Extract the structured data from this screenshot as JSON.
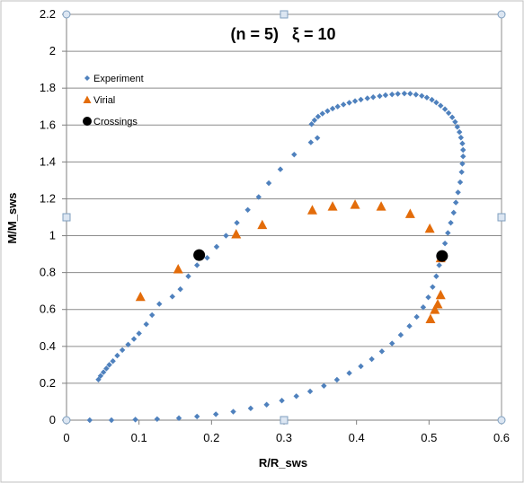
{
  "chart_data": {
    "type": "scatter",
    "title": "(n = 5)   ξ = 10",
    "xlabel": "R/R_sws",
    "ylabel": "M/M_sws",
    "xlim": [
      0,
      0.6
    ],
    "ylim": [
      0,
      2.2
    ],
    "xticks": [
      0,
      0.1,
      0.2,
      0.3,
      0.4,
      0.5,
      0.6
    ],
    "xtick_labels": [
      "0",
      "0.1",
      "0.2",
      "0.3",
      "0.4",
      "0.5",
      "0.6"
    ],
    "yticks": [
      0,
      0.2,
      0.4,
      0.6,
      0.8,
      1,
      1.2,
      1.4,
      1.6,
      1.8,
      2,
      2.2
    ],
    "ytick_labels": [
      "0",
      "0.2",
      "0.4",
      "0.6",
      "0.8",
      "1",
      "1.2",
      "1.4",
      "1.6",
      "1.8",
      "2",
      "2.2"
    ],
    "grid": "horizontal",
    "legend_position": "top-left",
    "series": [
      {
        "name": "Experiment",
        "marker": "diamond",
        "color": "#4f81bd",
        "points": [
          [
            0.032,
            0.0
          ],
          [
            0.062,
            0.0
          ],
          [
            0.095,
            0.003
          ],
          [
            0.125,
            0.006
          ],
          [
            0.155,
            0.011
          ],
          [
            0.18,
            0.02
          ],
          [
            0.206,
            0.032
          ],
          [
            0.23,
            0.046
          ],
          [
            0.254,
            0.064
          ],
          [
            0.276,
            0.084
          ],
          [
            0.297,
            0.106
          ],
          [
            0.317,
            0.13
          ],
          [
            0.336,
            0.156
          ],
          [
            0.355,
            0.186
          ],
          [
            0.373,
            0.219
          ],
          [
            0.39,
            0.255
          ],
          [
            0.406,
            0.292
          ],
          [
            0.421,
            0.331
          ],
          [
            0.435,
            0.373
          ],
          [
            0.449,
            0.416
          ],
          [
            0.461,
            0.462
          ],
          [
            0.473,
            0.51
          ],
          [
            0.483,
            0.56
          ],
          [
            0.492,
            0.612
          ],
          [
            0.499,
            0.666
          ],
          [
            0.505,
            0.722
          ],
          [
            0.51,
            0.78
          ],
          [
            0.514,
            0.84
          ],
          [
            0.518,
            0.9
          ],
          [
            0.522,
            0.958
          ],
          [
            0.526,
            1.015
          ],
          [
            0.53,
            1.07
          ],
          [
            0.534,
            1.125
          ],
          [
            0.537,
            1.18
          ],
          [
            0.54,
            1.235
          ],
          [
            0.543,
            1.29
          ],
          [
            0.545,
            1.345
          ],
          [
            0.546,
            1.39
          ],
          [
            0.547,
            1.43
          ],
          [
            0.547,
            1.465
          ],
          [
            0.546,
            1.5
          ],
          [
            0.544,
            1.532
          ],
          [
            0.542,
            1.562
          ],
          [
            0.539,
            1.59
          ],
          [
            0.536,
            1.617
          ],
          [
            0.532,
            1.642
          ],
          [
            0.527,
            1.665
          ],
          [
            0.522,
            1.686
          ],
          [
            0.516,
            1.705
          ],
          [
            0.51,
            1.722
          ],
          [
            0.504,
            1.737
          ],
          [
            0.497,
            1.749
          ],
          [
            0.49,
            1.758
          ],
          [
            0.482,
            1.765
          ],
          [
            0.474,
            1.77
          ],
          [
            0.466,
            1.771
          ],
          [
            0.457,
            1.769
          ],
          [
            0.449,
            1.766
          ],
          [
            0.44,
            1.762
          ],
          [
            0.432,
            1.757
          ],
          [
            0.423,
            1.751
          ],
          [
            0.415,
            1.745
          ],
          [
            0.406,
            1.738
          ],
          [
            0.398,
            1.73
          ],
          [
            0.39,
            1.721
          ],
          [
            0.382,
            1.711
          ],
          [
            0.374,
            1.7
          ],
          [
            0.367,
            1.689
          ],
          [
            0.36,
            1.676
          ],
          [
            0.353,
            1.662
          ],
          [
            0.347,
            1.646
          ],
          [
            0.342,
            1.626
          ],
          [
            0.338,
            1.605
          ],
          [
            0.346,
            1.53
          ],
          [
            0.337,
            1.506
          ],
          [
            0.314,
            1.44
          ],
          [
            0.295,
            1.36
          ],
          [
            0.279,
            1.285
          ],
          [
            0.265,
            1.21
          ],
          [
            0.25,
            1.14
          ],
          [
            0.235,
            1.07
          ],
          [
            0.22,
            1.0
          ],
          [
            0.207,
            0.94
          ],
          [
            0.194,
            0.88
          ],
          [
            0.18,
            0.84
          ],
          [
            0.168,
            0.78
          ],
          [
            0.157,
            0.71
          ],
          [
            0.146,
            0.67
          ],
          [
            0.128,
            0.63
          ],
          [
            0.118,
            0.57
          ],
          [
            0.11,
            0.52
          ],
          [
            0.1,
            0.47
          ],
          [
            0.093,
            0.44
          ],
          [
            0.085,
            0.41
          ],
          [
            0.077,
            0.38
          ],
          [
            0.07,
            0.35
          ],
          [
            0.064,
            0.32
          ],
          [
            0.059,
            0.3
          ],
          [
            0.055,
            0.28
          ],
          [
            0.051,
            0.26
          ],
          [
            0.047,
            0.24
          ],
          [
            0.044,
            0.22
          ]
        ]
      },
      {
        "name": "Virial",
        "marker": "triangle",
        "color": "#e36c0a",
        "points": [
          [
            0.102,
            0.67
          ],
          [
            0.154,
            0.82
          ],
          [
            0.234,
            1.01
          ],
          [
            0.27,
            1.06
          ],
          [
            0.339,
            1.14
          ],
          [
            0.367,
            1.16
          ],
          [
            0.398,
            1.17
          ],
          [
            0.434,
            1.16
          ],
          [
            0.474,
            1.12
          ],
          [
            0.501,
            1.04
          ],
          [
            0.516,
            0.88
          ],
          [
            0.516,
            0.68
          ],
          [
            0.512,
            0.63
          ],
          [
            0.508,
            0.6
          ],
          [
            0.502,
            0.55
          ]
        ]
      },
      {
        "name": "Crossings",
        "marker": "circle",
        "color": "#000000",
        "points": [
          [
            0.183,
            0.895
          ],
          [
            0.518,
            0.89
          ]
        ]
      }
    ]
  }
}
